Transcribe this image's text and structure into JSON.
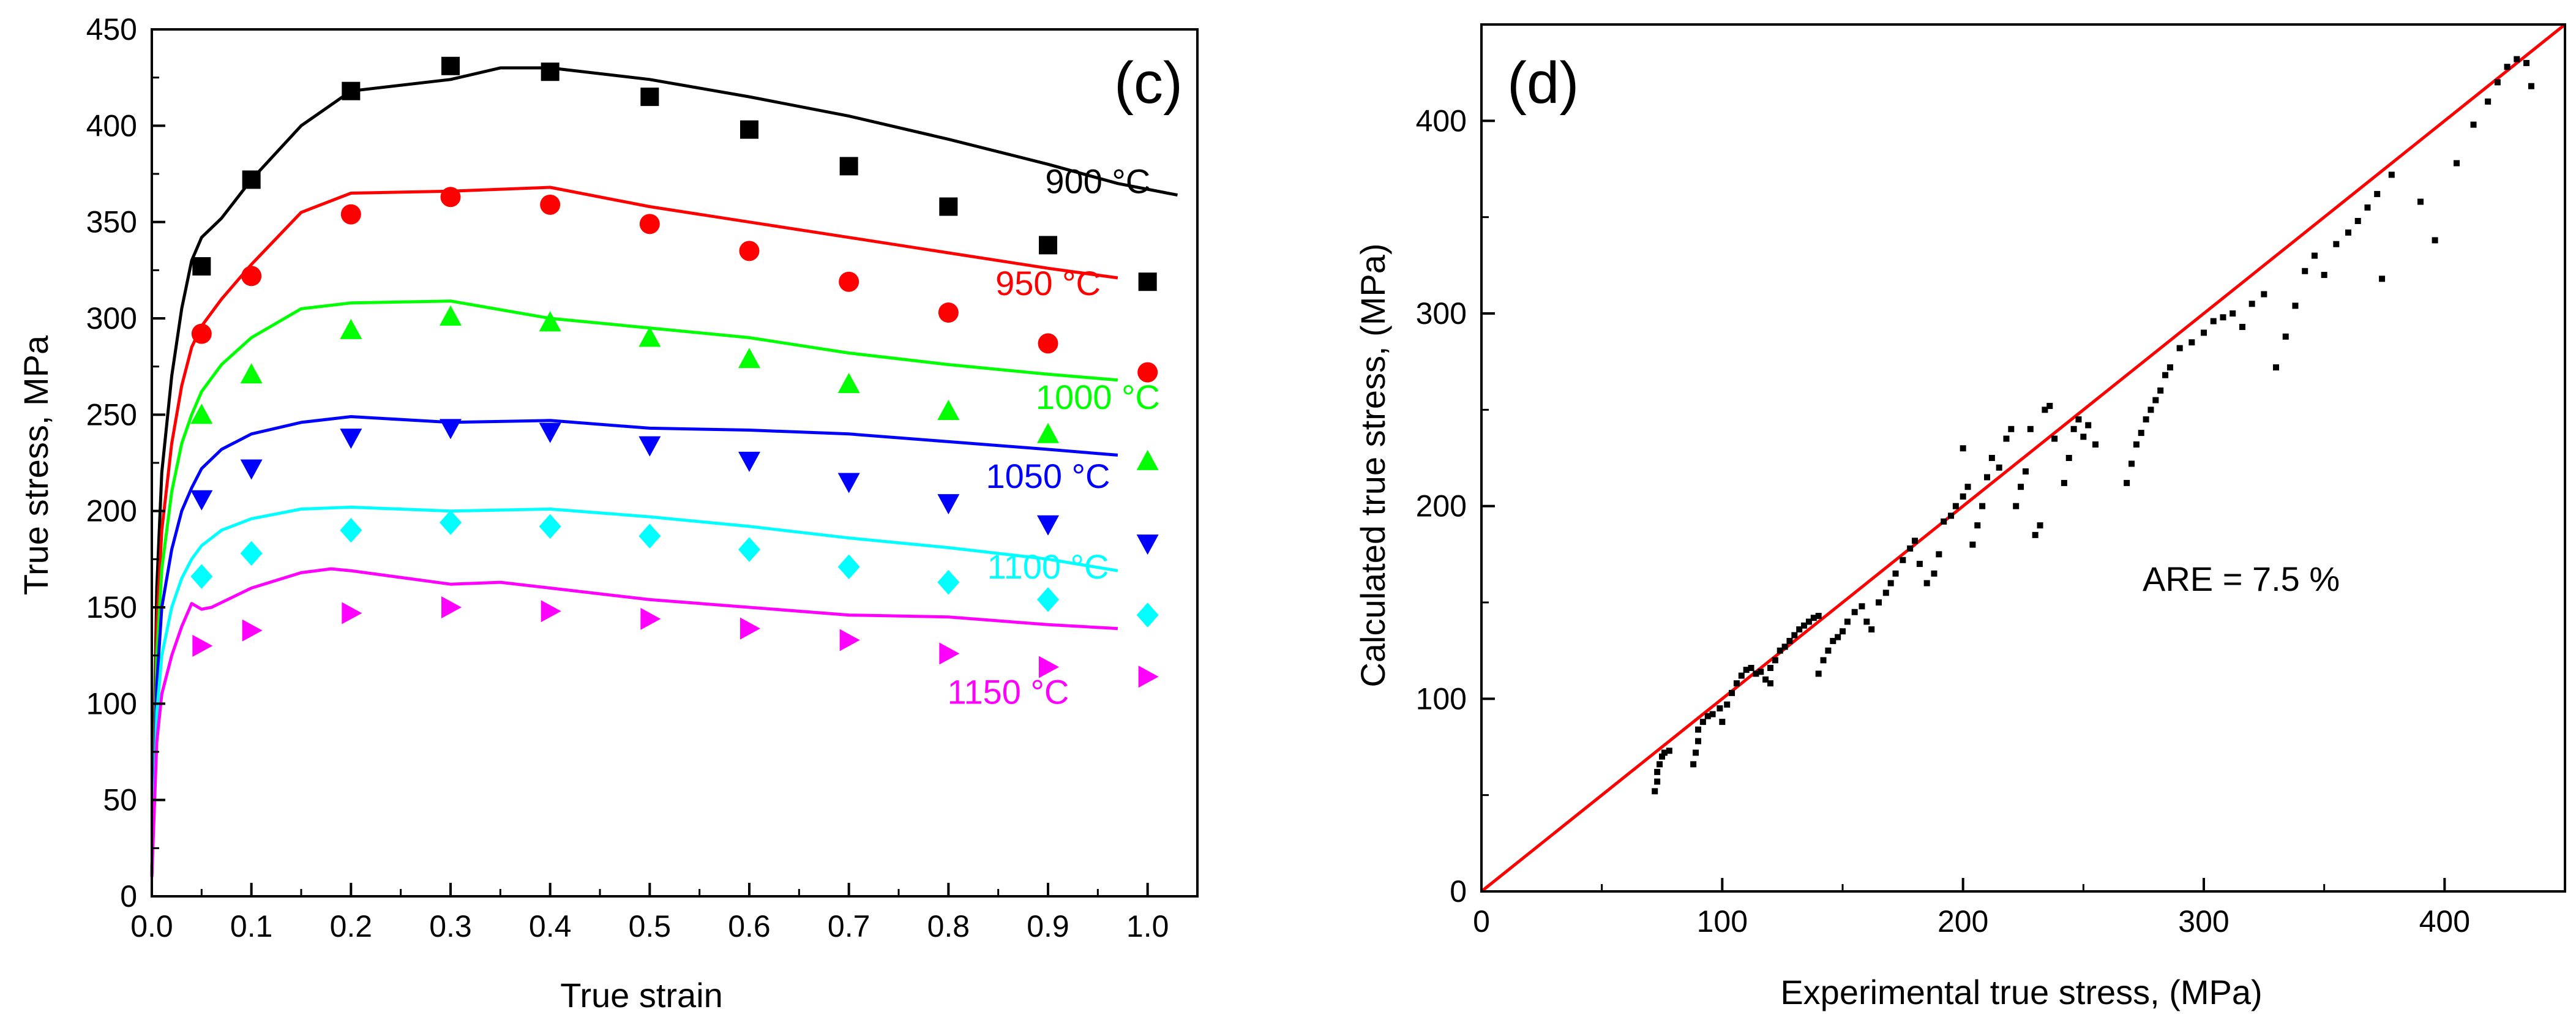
{
  "chart_data": [
    {
      "panel": "(c)",
      "type": "line",
      "xlabel": "True strain",
      "ylabel": "True stress, MPa",
      "xlim": [
        0.0,
        1.05
      ],
      "ylim": [
        0,
        450
      ],
      "xticks": [
        "0.0",
        "0.1",
        "0.2",
        "0.3",
        "0.4",
        "0.5",
        "0.6",
        "0.7",
        "0.8",
        "0.9",
        "1.0"
      ],
      "yticks": [
        "0",
        "50",
        "100",
        "150",
        "200",
        "250",
        "300",
        "350",
        "400",
        "450"
      ],
      "grid": false,
      "series": [
        {
          "name": "900 °C",
          "color": "#000000",
          "marker": "square",
          "points_x": [
            0.05,
            0.1,
            0.2,
            0.3,
            0.4,
            0.5,
            0.6,
            0.7,
            0.8,
            0.9,
            1.0
          ],
          "points_y": [
            327,
            372,
            418,
            431,
            428,
            415,
            398,
            379,
            358,
            338,
            319
          ],
          "curve_x": [
            0.0,
            0.005,
            0.01,
            0.02,
            0.03,
            0.04,
            0.05,
            0.07,
            0.1,
            0.15,
            0.2,
            0.3,
            0.35,
            0.4,
            0.5,
            0.6,
            0.7,
            0.8,
            0.9,
            0.97,
            1.03
          ],
          "curve_y": [
            10,
            160,
            220,
            270,
            305,
            330,
            342,
            352,
            372,
            400,
            418,
            424,
            430,
            430,
            424,
            415,
            405,
            393,
            380,
            370,
            364
          ]
        },
        {
          "name": "950 °C",
          "color": "#ff0000",
          "marker": "circle",
          "points_x": [
            0.05,
            0.1,
            0.2,
            0.3,
            0.4,
            0.5,
            0.6,
            0.7,
            0.8,
            0.9,
            1.0
          ],
          "points_y": [
            292,
            322,
            354,
            363,
            359,
            349,
            335,
            319,
            303,
            287,
            272
          ],
          "curve_x": [
            0.0,
            0.005,
            0.01,
            0.02,
            0.03,
            0.04,
            0.05,
            0.07,
            0.1,
            0.15,
            0.2,
            0.3,
            0.4,
            0.5,
            0.6,
            0.7,
            0.8,
            0.9,
            0.97
          ],
          "curve_y": [
            10,
            140,
            190,
            235,
            265,
            285,
            296,
            310,
            328,
            355,
            365,
            366,
            368,
            358,
            350,
            342,
            334,
            326,
            321
          ]
        },
        {
          "name": "1000 °C",
          "color": "#00ff00",
          "marker": "triangle-up",
          "points_x": [
            0.05,
            0.1,
            0.2,
            0.3,
            0.4,
            0.5,
            0.6,
            0.7,
            0.8,
            0.9,
            1.0
          ],
          "points_y": [
            250,
            271,
            294,
            301,
            298,
            290,
            279,
            266,
            252,
            240,
            226
          ],
          "curve_x": [
            0.0,
            0.005,
            0.01,
            0.02,
            0.03,
            0.04,
            0.05,
            0.07,
            0.1,
            0.15,
            0.2,
            0.3,
            0.4,
            0.5,
            0.6,
            0.7,
            0.8,
            0.9,
            0.97
          ],
          "curve_y": [
            10,
            125,
            170,
            210,
            235,
            250,
            262,
            276,
            290,
            305,
            308,
            309,
            300,
            295,
            290,
            282,
            276,
            271,
            268
          ]
        },
        {
          "name": "1050 °C",
          "color": "#0000ff",
          "marker": "triangle-down",
          "points_x": [
            0.05,
            0.1,
            0.2,
            0.3,
            0.4,
            0.5,
            0.6,
            0.7,
            0.8,
            0.9,
            1.0
          ],
          "points_y": [
            206,
            222,
            238,
            243,
            241,
            234,
            226,
            215,
            204,
            193,
            183
          ],
          "curve_x": [
            0.0,
            0.005,
            0.01,
            0.02,
            0.03,
            0.04,
            0.05,
            0.07,
            0.1,
            0.15,
            0.2,
            0.3,
            0.4,
            0.5,
            0.6,
            0.7,
            0.8,
            0.9,
            0.97
          ],
          "curve_y": [
            10,
            110,
            150,
            180,
            200,
            212,
            222,
            232,
            240,
            246,
            249,
            246,
            247,
            243,
            242,
            240,
            236,
            232,
            229
          ]
        },
        {
          "name": "1100 °C",
          "color": "#00ffff",
          "marker": "diamond",
          "points_x": [
            0.05,
            0.1,
            0.2,
            0.3,
            0.4,
            0.5,
            0.6,
            0.7,
            0.8,
            0.9,
            1.0
          ],
          "points_y": [
            166,
            178,
            190,
            194,
            192,
            187,
            180,
            171,
            163,
            154,
            146
          ],
          "curve_x": [
            0.0,
            0.005,
            0.01,
            0.02,
            0.03,
            0.04,
            0.05,
            0.07,
            0.1,
            0.15,
            0.2,
            0.3,
            0.4,
            0.5,
            0.6,
            0.7,
            0.8,
            0.9,
            0.97
          ],
          "curve_y": [
            10,
            95,
            125,
            150,
            165,
            175,
            182,
            190,
            196,
            201,
            202,
            200,
            201,
            197,
            192,
            186,
            181,
            175,
            169
          ]
        },
        {
          "name": "1150 °C",
          "color": "#ff00ff",
          "marker": "triangle-right",
          "points_x": [
            0.05,
            0.1,
            0.2,
            0.3,
            0.4,
            0.5,
            0.6,
            0.7,
            0.8,
            0.9,
            1.0
          ],
          "points_y": [
            130,
            138,
            147,
            150,
            148,
            144,
            139,
            133,
            126,
            119,
            114
          ],
          "curve_x": [
            0.0,
            0.005,
            0.01,
            0.02,
            0.03,
            0.04,
            0.05,
            0.06,
            0.1,
            0.15,
            0.18,
            0.2,
            0.3,
            0.35,
            0.4,
            0.5,
            0.6,
            0.7,
            0.8,
            0.9,
            0.97
          ],
          "curve_y": [
            10,
            80,
            105,
            125,
            140,
            152,
            149,
            150,
            160,
            168,
            170,
            169,
            162,
            163,
            160,
            154,
            150,
            146,
            145,
            141,
            139
          ]
        }
      ]
    },
    {
      "panel": "(d)",
      "type": "scatter",
      "xlabel": "Experimental true stress, (MPa)",
      "ylabel": "Calculated true stress, (MPa)",
      "xlim": [
        0,
        450
      ],
      "ylim": [
        0,
        450
      ],
      "xticks": [
        "0",
        "100",
        "200",
        "300",
        "400"
      ],
      "yticks": [
        "0",
        "100",
        "200",
        "300",
        "400"
      ],
      "annotation": "ARE = 7.5 %",
      "reference_line": {
        "from": [
          0,
          0
        ],
        "to": [
          450,
          450
        ],
        "color": "#ff0000"
      },
      "color": "#000000",
      "points": [
        [
          72,
          52
        ],
        [
          73,
          57
        ],
        [
          73,
          62
        ],
        [
          74,
          66
        ],
        [
          75,
          70
        ],
        [
          76,
          72
        ],
        [
          78,
          73
        ],
        [
          88,
          66
        ],
        [
          89,
          72
        ],
        [
          90,
          78
        ],
        [
          90,
          84
        ],
        [
          92,
          88
        ],
        [
          94,
          91
        ],
        [
          96,
          92
        ],
        [
          99,
          95
        ],
        [
          100,
          88
        ],
        [
          102,
          97
        ],
        [
          104,
          103
        ],
        [
          106,
          108
        ],
        [
          108,
          112
        ],
        [
          110,
          115
        ],
        [
          112,
          116
        ],
        [
          114,
          113
        ],
        [
          116,
          114
        ],
        [
          118,
          110
        ],
        [
          120,
          116
        ],
        [
          122,
          120
        ],
        [
          124,
          125
        ],
        [
          126,
          127
        ],
        [
          128,
          130
        ],
        [
          130,
          133
        ],
        [
          132,
          136
        ],
        [
          134,
          138
        ],
        [
          136,
          140
        ],
        [
          138,
          142
        ],
        [
          140,
          143
        ],
        [
          140,
          113
        ],
        [
          142,
          120
        ],
        [
          144,
          125
        ],
        [
          146,
          130
        ],
        [
          148,
          132
        ],
        [
          150,
          135
        ],
        [
          152,
          140
        ],
        [
          155,
          145
        ],
        [
          158,
          148
        ],
        [
          160,
          140
        ],
        [
          162,
          136
        ],
        [
          165,
          150
        ],
        [
          168,
          155
        ],
        [
          170,
          160
        ],
        [
          172,
          165
        ],
        [
          175,
          172
        ],
        [
          178,
          178
        ],
        [
          180,
          182
        ],
        [
          182,
          170
        ],
        [
          185,
          160
        ],
        [
          188,
          165
        ],
        [
          190,
          175
        ],
        [
          192,
          192
        ],
        [
          195,
          195
        ],
        [
          197,
          200
        ],
        [
          200,
          205
        ],
        [
          202,
          210
        ],
        [
          204,
          180
        ],
        [
          206,
          190
        ],
        [
          208,
          200
        ],
        [
          210,
          215
        ],
        [
          212,
          225
        ],
        [
          215,
          220
        ],
        [
          218,
          235
        ],
        [
          220,
          240
        ],
        [
          222,
          200
        ],
        [
          224,
          210
        ],
        [
          226,
          218
        ],
        [
          228,
          240
        ],
        [
          230,
          185
        ],
        [
          232,
          190
        ],
        [
          234,
          250
        ],
        [
          236,
          252
        ],
        [
          238,
          235
        ],
        [
          242,
          212
        ],
        [
          244,
          225
        ],
        [
          246,
          240
        ],
        [
          248,
          245
        ],
        [
          250,
          236
        ],
        [
          252,
          242
        ],
        [
          255,
          232
        ],
        [
          268,
          212
        ],
        [
          270,
          222
        ],
        [
          272,
          232
        ],
        [
          274,
          238
        ],
        [
          276,
          245
        ],
        [
          278,
          250
        ],
        [
          280,
          255
        ],
        [
          282,
          260
        ],
        [
          284,
          268
        ],
        [
          286,
          272
        ],
        [
          290,
          282
        ],
        [
          295,
          285
        ],
        [
          300,
          290
        ],
        [
          304,
          296
        ],
        [
          308,
          298
        ],
        [
          312,
          300
        ],
        [
          316,
          293
        ],
        [
          320,
          305
        ],
        [
          325,
          310
        ],
        [
          330,
          272
        ],
        [
          334,
          288
        ],
        [
          338,
          304
        ],
        [
          342,
          322
        ],
        [
          346,
          330
        ],
        [
          350,
          320
        ],
        [
          355,
          336
        ],
        [
          360,
          342
        ],
        [
          364,
          348
        ],
        [
          368,
          355
        ],
        [
          372,
          362
        ],
        [
          374,
          318
        ],
        [
          378,
          372
        ],
        [
          390,
          358
        ],
        [
          396,
          338
        ],
        [
          405,
          378
        ],
        [
          412,
          398
        ],
        [
          418,
          410
        ],
        [
          422,
          420
        ],
        [
          426,
          428
        ],
        [
          430,
          432
        ],
        [
          434,
          430
        ],
        [
          436,
          418
        ],
        [
          200,
          230
        ],
        [
          120,
          108
        ]
      ]
    }
  ]
}
